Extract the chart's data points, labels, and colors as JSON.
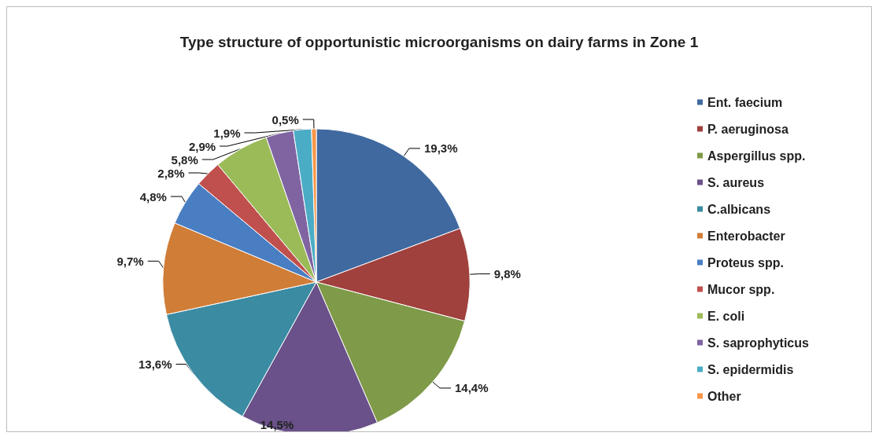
{
  "chart_data": {
    "type": "pie",
    "title": "Type structure of opportunistic microorganisms on dairy farms in Zone 1",
    "categories": [
      "Ent. faecium",
      "P. aeruginosa",
      "Aspergillus spp.",
      "S. aureus",
      "C.albicans",
      "Enterobacter",
      "Proteus spp.",
      "Mucor spp.",
      "E. coli",
      "S. saprophyticus",
      "S. epidermidis",
      "Other"
    ],
    "values": [
      19.3,
      9.8,
      14.4,
      14.5,
      13.6,
      9.7,
      4.8,
      2.8,
      5.8,
      2.9,
      1.9,
      0.5
    ],
    "value_labels": [
      "19,3%",
      "9,8%",
      "14,4%",
      "14,5%",
      "13,6%",
      "9,7%",
      "4,8%",
      "2,8%",
      "5,8%",
      "2,9%",
      "1,9%",
      "0,5%"
    ],
    "colors": [
      "#4069a0",
      "#a0413e",
      "#7f9a48",
      "#6a5189",
      "#3b8ba3",
      "#d07d37",
      "#4a7ec2",
      "#c0504d",
      "#9bbb59",
      "#8064a2",
      "#4bacc6",
      "#f79646"
    ],
    "legend": "right"
  }
}
